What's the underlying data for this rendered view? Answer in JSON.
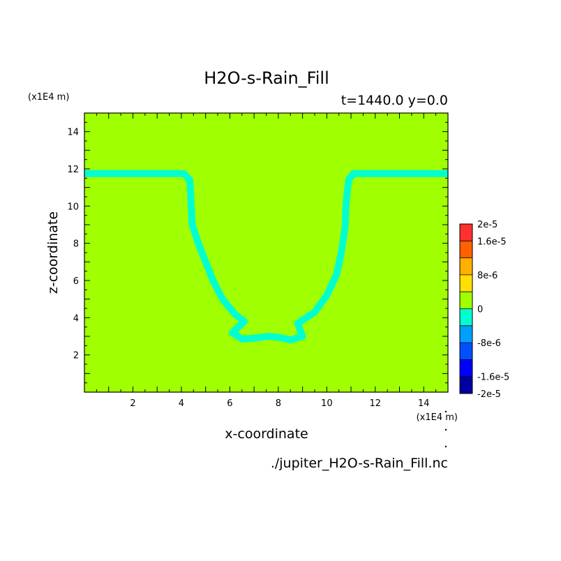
{
  "chart_data": {
    "type": "heatmap",
    "title": "H2O-s-Rain_Fill",
    "subtitle": "t=1440.0 y=0.0",
    "xlabel": "x-coordinate",
    "ylabel": "z-coordinate",
    "x_unit": "(x1E4 m)",
    "y_unit": "(x1E4 m)",
    "source_file": "./jupiter_H2O-s-Rain_Fill.nc",
    "xlim": [
      0,
      15
    ],
    "ylim": [
      0,
      15
    ],
    "x_ticks": [
      2,
      4,
      6,
      8,
      10,
      12,
      14
    ],
    "y_ticks": [
      2,
      4,
      6,
      8,
      10,
      12,
      14
    ],
    "colorbar": {
      "tick_labels": [
        "2e-5",
        "1.6e-5",
        "8e-6",
        "0",
        "-8e-6",
        "-1.6e-5",
        "-2e-5"
      ],
      "tick_values": [
        2e-05,
        1.6e-05,
        8e-06,
        0,
        -8e-06,
        -1.6e-05,
        -2e-05
      ],
      "levels": [
        -2e-05,
        -1.6e-05,
        -1.2e-05,
        -8e-06,
        -4e-06,
        0,
        4e-06,
        8e-06,
        1.2e-05,
        1.6e-05,
        2e-05
      ],
      "colors": [
        "#0000a0",
        "#0000ff",
        "#0050ff",
        "#00a0ff",
        "#00ffd0",
        "#a0ff00",
        "#ffe000",
        "#ffb000",
        "#ff6000",
        "#ff3030"
      ]
    },
    "background_value_range": [
      0,
      4e-06
    ],
    "background_color": "#a0ff00",
    "contour_band": {
      "value_range": [
        -4e-06,
        0
      ],
      "color": "#00ffd0",
      "points": [
        [
          0,
          11.75
        ],
        [
          4.1,
          11.75
        ],
        [
          4.35,
          11.4
        ],
        [
          4.4,
          10.2
        ],
        [
          4.45,
          9.0
        ],
        [
          4.7,
          8.0
        ],
        [
          5.0,
          7.0
        ],
        [
          5.3,
          6.0
        ],
        [
          5.7,
          5.0
        ],
        [
          6.2,
          4.2
        ],
        [
          6.6,
          3.8
        ],
        [
          6.1,
          3.2
        ],
        [
          6.5,
          2.85
        ],
        [
          7.0,
          2.9
        ],
        [
          7.6,
          3.0
        ],
        [
          8.0,
          2.95
        ],
        [
          8.5,
          2.8
        ],
        [
          9.0,
          3.0
        ],
        [
          8.8,
          3.7
        ],
        [
          9.5,
          4.3
        ],
        [
          10.0,
          5.2
        ],
        [
          10.4,
          6.3
        ],
        [
          10.6,
          7.5
        ],
        [
          10.75,
          8.8
        ],
        [
          10.8,
          10.2
        ],
        [
          10.9,
          11.4
        ],
        [
          11.1,
          11.75
        ],
        [
          15,
          11.75
        ]
      ]
    }
  }
}
